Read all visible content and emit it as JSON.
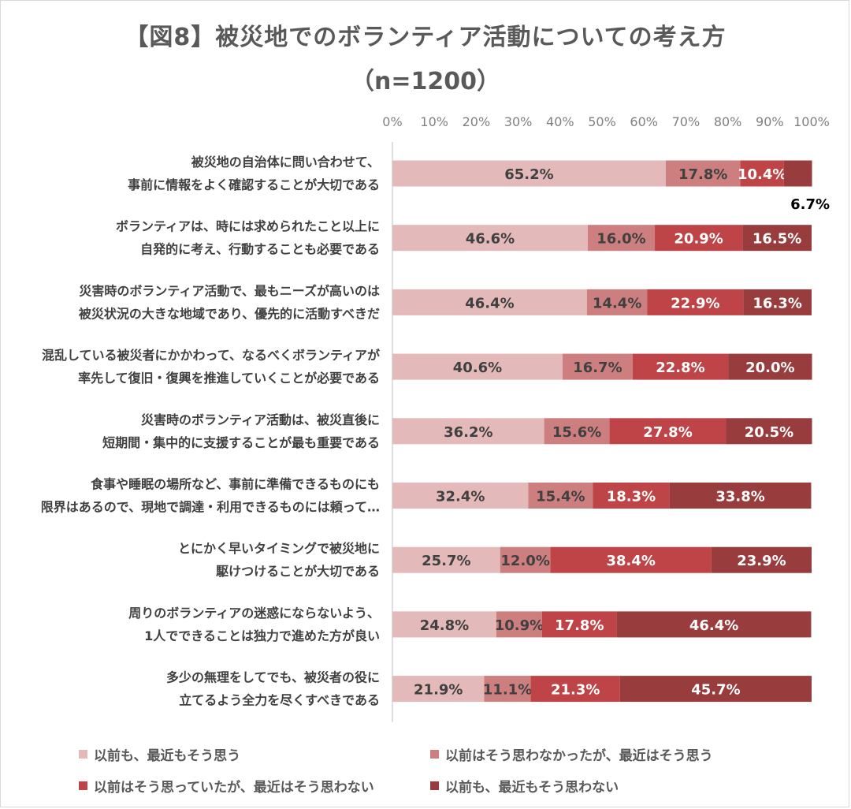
{
  "title": "【図8】被災地でのボランティア活動についての考え方",
  "subtitle": "（n=1200）",
  "chart_data": {
    "type": "bar",
    "orientation": "horizontal-stacked-100",
    "xlim": [
      0,
      100
    ],
    "ticks": [
      "0%",
      "10%",
      "20%",
      "30%",
      "40%",
      "50%",
      "60%",
      "70%",
      "80%",
      "90%",
      "100%"
    ],
    "categories": [
      [
        "被災地の自治体に問い合わせて、",
        "事前に情報をよく確認することが大切である"
      ],
      [
        "ボランティアは、時には求められたこと以上に",
        "自発的に考え、行動することも必要である"
      ],
      [
        "災害時のボランティア活動で、最もニーズが高いのは",
        "被災状況の大きな地域であり、優先的に活動すべきだ"
      ],
      [
        "混乱している被災者にかかわって、なるべくボランティアが",
        "率先して復旧・復興を推進していくことが必要である"
      ],
      [
        "災害時のボランティア活動は、被災直後に",
        "短期間・集中的に支援することが最も重要である"
      ],
      [
        "食事や睡眠の場所など、事前に準備できるものにも",
        "限界はあるので、現地で調達・利用できるものには頼って…"
      ],
      [
        "とにかく早いタイミングで被災地に",
        "駆けつけることが大切である"
      ],
      [
        "周りのボランティアの迷惑にならないよう、",
        "1人でできることは独力で進めた方が良い"
      ],
      [
        "多少の無理をしてでも、被災者の役に",
        "立てるよう全力を尽くすべきである"
      ]
    ],
    "series": [
      {
        "name": "以前も、最近もそう思う",
        "color": "#e3b9ba",
        "label_color": "#404040",
        "values": [
          65.2,
          46.6,
          46.4,
          40.6,
          36.2,
          32.4,
          25.7,
          24.8,
          21.9
        ],
        "labels": [
          "65.2%",
          "46.6%",
          "46.4%",
          "40.6%",
          "36.2%",
          "32.4%",
          "25.7%",
          "24.8%",
          "21.9%"
        ]
      },
      {
        "name": "以前はそう思わなかったが、最近はそう思う",
        "color": "#cd7e7f",
        "label_color": "#404040",
        "values": [
          17.8,
          16.0,
          14.4,
          16.7,
          15.6,
          15.4,
          12.0,
          10.9,
          11.1
        ],
        "labels": [
          "17.8%",
          "16.0%",
          "14.4%",
          "16.7%",
          "15.6%",
          "15.4%",
          "12.0%",
          "10.9%",
          "11.1%"
        ]
      },
      {
        "name": "以前はそう思っていたが、最近はそう思わない",
        "color": "#bf4447",
        "label_color": "#ffffff",
        "values": [
          10.4,
          20.9,
          22.9,
          22.8,
          27.8,
          18.3,
          38.4,
          17.8,
          21.3
        ],
        "labels": [
          "10.4%",
          "20.9%",
          "22.9%",
          "22.8%",
          "27.8%",
          "18.3%",
          "38.4%",
          "17.8%",
          "21.3%"
        ]
      },
      {
        "name": "以前も、最近もそう思わない",
        "color": "#993c3e",
        "label_color": "#ffffff",
        "values": [
          6.7,
          16.5,
          16.3,
          20.0,
          20.5,
          33.8,
          23.9,
          46.4,
          45.7
        ],
        "labels": [
          "6.7%",
          "16.5%",
          "16.3%",
          "20.0%",
          "20.5%",
          "33.8%",
          "23.9%",
          "46.4%",
          "45.7%"
        ]
      }
    ],
    "outside_labels": [
      {
        "row": 0,
        "series": 3
      }
    ],
    "legend": "bottom"
  }
}
